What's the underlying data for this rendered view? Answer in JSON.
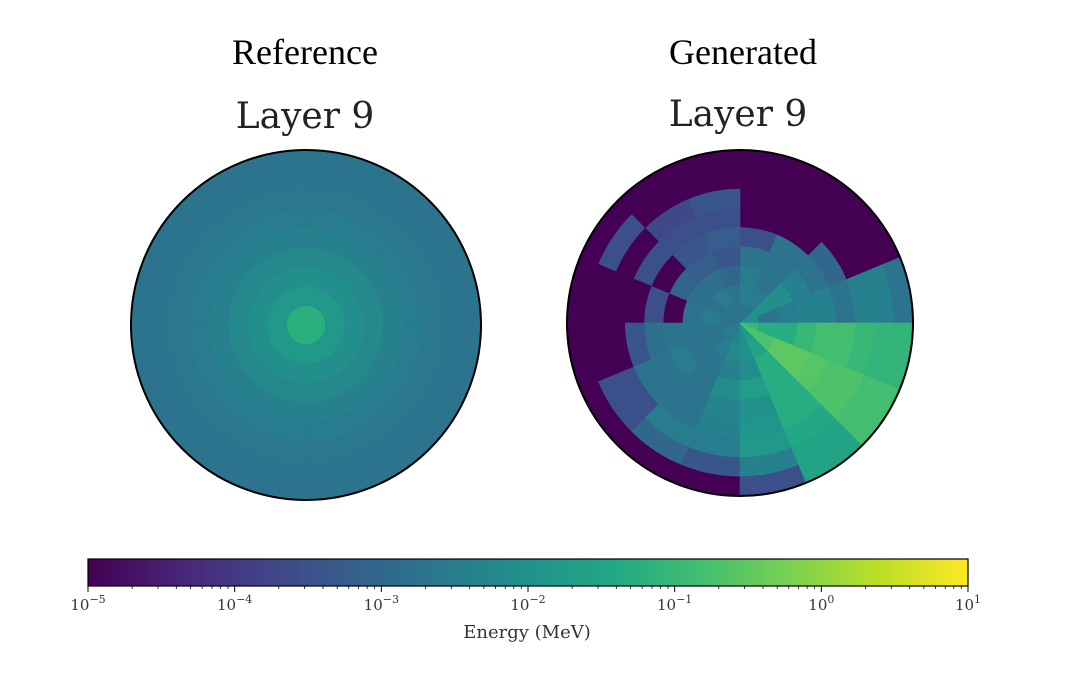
{
  "panels": [
    {
      "column_title": "Reference",
      "layer_title": "Layer 9"
    },
    {
      "column_title": "Generated",
      "layer_title": "Layer 9"
    }
  ],
  "colorbar": {
    "label": "Energy (MeV)",
    "scale": "log",
    "range": [
      1e-05,
      10
    ],
    "colormap": "viridis",
    "ticks": [
      {
        "value": 1e-05,
        "base": "10",
        "exp": "−5"
      },
      {
        "value": 0.0001,
        "base": "10",
        "exp": "−4"
      },
      {
        "value": 0.001,
        "base": "10",
        "exp": "−3"
      },
      {
        "value": 0.01,
        "base": "10",
        "exp": "−2"
      },
      {
        "value": 0.1,
        "base": "10",
        "exp": "−1"
      },
      {
        "value": 1,
        "base": "10",
        "exp": "0"
      },
      {
        "value": 10,
        "base": "10",
        "exp": "1"
      }
    ]
  },
  "chart_data": [
    {
      "type": "heatmap",
      "projection": "polar",
      "title": "Layer 9",
      "column_title": "Reference",
      "value_units": "MeV",
      "color_scale": "log",
      "clim": [
        1e-05,
        10
      ],
      "radial_bins": 9,
      "angular_bins": 16,
      "radial_profile": [
        0.06,
        0.015,
        0.009,
        0.006,
        0.004,
        0.003,
        0.0024,
        0.0021,
        0.002
      ],
      "angular_profile": []
    },
    {
      "type": "heatmap",
      "projection": "polar",
      "title": "Layer 9",
      "column_title": "Generated",
      "value_units": "MeV",
      "color_scale": "log",
      "clim": [
        1e-05,
        10
      ],
      "radial_bins": 9,
      "angular_bins": 16,
      "values": [
        [
          0.01,
          0.002,
          0.003,
          0.004,
          0.004,
          0.002,
          0.004,
          0.004,
          0.002
        ],
        [
          0.01,
          0.01,
          0.008,
          0.004,
          0.002,
          0.001,
          1e-05,
          1e-05,
          1e-05
        ],
        [
          0.002,
          0.003,
          0.002,
          0.002,
          0.002,
          1e-05,
          1e-05,
          1e-05,
          1e-05
        ],
        [
          0.002,
          0.004,
          0.003,
          0.002,
          0.0003,
          1e-05,
          1e-05,
          1e-05,
          1e-05
        ],
        [
          0.002,
          0.002,
          0.001,
          0.0004,
          0.0006,
          0.0003,
          0.0004,
          1e-05,
          1e-05
        ],
        [
          0.002,
          0.003,
          0.0015,
          0.0006,
          0.0004,
          0.0003,
          0.0002,
          1e-05,
          1e-05
        ],
        [
          0.002,
          0.002,
          0.0015,
          0.0008,
          1e-05,
          0.0003,
          1e-05,
          0.0003,
          1e-05
        ],
        [
          0.002,
          0.003,
          0.002,
          1e-05,
          0.0003,
          1e-05,
          1e-05,
          1e-05,
          1e-05
        ],
        [
          0.002,
          0.002,
          0.002,
          0.002,
          0.0015,
          0.0004,
          1e-05,
          1e-05,
          1e-05
        ],
        [
          0.003,
          0.002,
          0.002,
          0.003,
          0.002,
          0.002,
          0.0003,
          0.0003,
          1e-05
        ],
        [
          0.003,
          0.003,
          0.002,
          0.002,
          0.002,
          0.002,
          0.003,
          0.001,
          1e-05
        ],
        [
          0.004,
          0.006,
          0.004,
          0.008,
          0.005,
          0.004,
          0.003,
          0.0004,
          1e-05
        ],
        [
          0.01,
          0.01,
          0.008,
          0.02,
          0.01,
          0.012,
          0.015,
          0.004,
          0.0003
        ],
        [
          0.02,
          0.03,
          0.05,
          0.05,
          0.05,
          0.05,
          0.04,
          0.03,
          0.03
        ],
        [
          0.2,
          0.2,
          0.3,
          0.3,
          0.25,
          0.2,
          0.2,
          0.15,
          0.15
        ],
        [
          0.1,
          0.05,
          0.05,
          0.1,
          0.15,
          0.15,
          0.1,
          0.08,
          0.08
        ]
      ]
    }
  ]
}
